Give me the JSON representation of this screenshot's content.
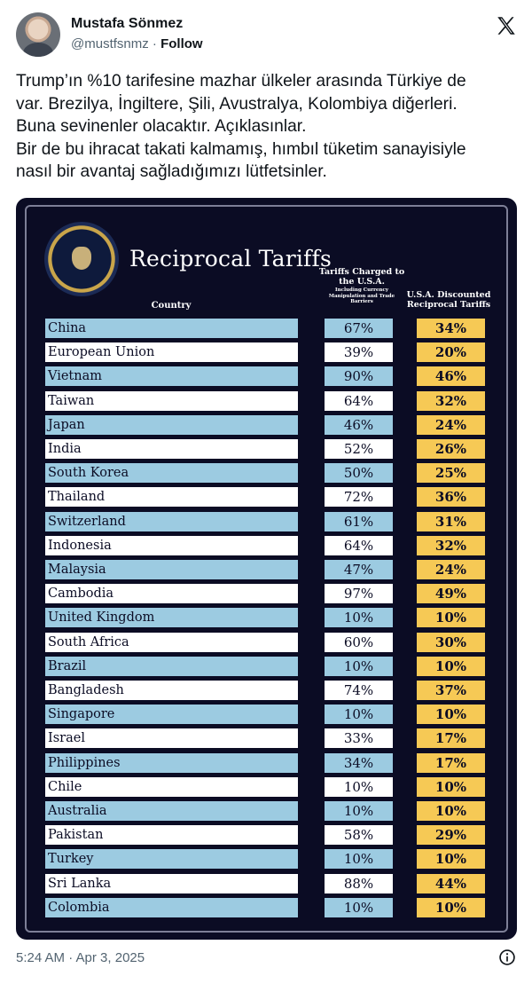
{
  "author": {
    "name": "Mustafa Sönmez",
    "handle": "@mustfsnmz",
    "separator": "·",
    "follow_label": "Follow"
  },
  "icons": {
    "platform": "x-logo-icon",
    "info": "info-icon"
  },
  "tweet": {
    "lines": [
      "Trump’ın %10 tarifesine mazhar ülkeler arasında Türkiye de",
      "var. Brezilya, İngiltere, Şili, Avustralya, Kolombiya diğerleri.",
      "Buna sevinenler olacaktır. Açıklasınlar.",
      "Bir de bu ihracat takati kalmamış, hımbıl tüketim sanayisiyle",
      "nasıl bir avantaj sağladığımızı lütfetsinler."
    ],
    "timestamp": "5:24 AM · Apr 3, 2025"
  },
  "graphic": {
    "title": "Reciprocal Tariffs",
    "col_country": "Country",
    "col_charged": "Tariffs Charged to the U.S.A.",
    "col_charged_sub": "Including Currency Manipulation and Trade Barriers",
    "col_discount": "U.S.A. Discounted Reciprocal Tariffs",
    "colors": {
      "background": "#0b0c24",
      "blue_row": "#9ccbe1",
      "white_row": "#ffffff",
      "gold": "#f6c955"
    },
    "rows": [
      {
        "country": "China",
        "charged": "67%",
        "discounted": "34%"
      },
      {
        "country": "European Union",
        "charged": "39%",
        "discounted": "20%"
      },
      {
        "country": "Vietnam",
        "charged": "90%",
        "discounted": "46%"
      },
      {
        "country": "Taiwan",
        "charged": "64%",
        "discounted": "32%"
      },
      {
        "country": "Japan",
        "charged": "46%",
        "discounted": "24%"
      },
      {
        "country": "India",
        "charged": "52%",
        "discounted": "26%"
      },
      {
        "country": "South Korea",
        "charged": "50%",
        "discounted": "25%"
      },
      {
        "country": "Thailand",
        "charged": "72%",
        "discounted": "36%"
      },
      {
        "country": "Switzerland",
        "charged": "61%",
        "discounted": "31%"
      },
      {
        "country": "Indonesia",
        "charged": "64%",
        "discounted": "32%"
      },
      {
        "country": "Malaysia",
        "charged": "47%",
        "discounted": "24%"
      },
      {
        "country": "Cambodia",
        "charged": "97%",
        "discounted": "49%"
      },
      {
        "country": "United Kingdom",
        "charged": "10%",
        "discounted": "10%"
      },
      {
        "country": "South Africa",
        "charged": "60%",
        "discounted": "30%"
      },
      {
        "country": "Brazil",
        "charged": "10%",
        "discounted": "10%"
      },
      {
        "country": "Bangladesh",
        "charged": "74%",
        "discounted": "37%"
      },
      {
        "country": "Singapore",
        "charged": "10%",
        "discounted": "10%"
      },
      {
        "country": "Israel",
        "charged": "33%",
        "discounted": "17%"
      },
      {
        "country": "Philippines",
        "charged": "34%",
        "discounted": "17%"
      },
      {
        "country": "Chile",
        "charged": "10%",
        "discounted": "10%"
      },
      {
        "country": "Australia",
        "charged": "10%",
        "discounted": "10%"
      },
      {
        "country": "Pakistan",
        "charged": "58%",
        "discounted": "29%"
      },
      {
        "country": "Turkey",
        "charged": "10%",
        "discounted": "10%"
      },
      {
        "country": "Sri Lanka",
        "charged": "88%",
        "discounted": "44%"
      },
      {
        "country": "Colombia",
        "charged": "10%",
        "discounted": "10%"
      }
    ]
  }
}
